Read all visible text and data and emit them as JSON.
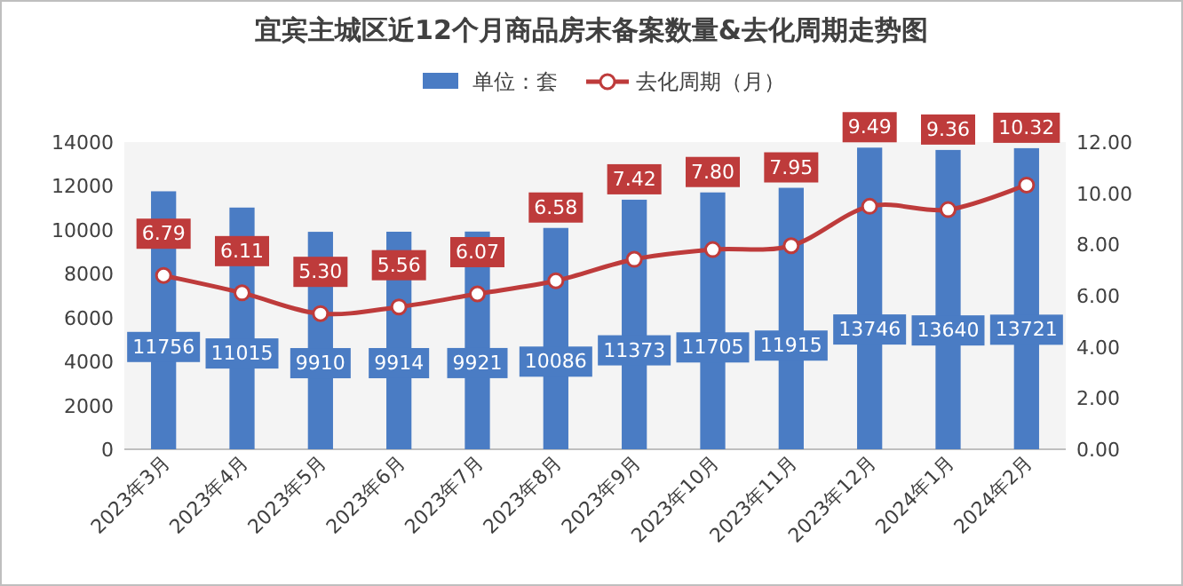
{
  "chart_data": {
    "type": "bar",
    "title": "宜宾主城区近12个月商品房末备案数量&去化周期走势图",
    "categories": [
      "2023年3月",
      "2023年4月",
      "2023年5月",
      "2023年6月",
      "2023年7月",
      "2023年8月",
      "2023年9月",
      "2023年10月",
      "2023年11月",
      "2023年12月",
      "2024年1月",
      "2024年2月"
    ],
    "series": [
      {
        "name": "单位：套",
        "color": "#4a7cc4",
        "values": [
          11756,
          11015,
          9910,
          9914,
          9921,
          10086,
          11373,
          11705,
          11915,
          13746,
          13640,
          13721
        ],
        "value_labels": [
          "11756",
          "11015",
          "9910",
          "9914",
          "9921",
          "10086",
          "11373",
          "11705",
          "11915",
          "13746",
          "13640",
          "13721"
        ]
      },
      {
        "name": "去化周期（月）",
        "type": "line",
        "axis": "y2",
        "color": "#be3b3b",
        "marker": "circle",
        "values": [
          6.79,
          6.11,
          5.3,
          5.56,
          6.07,
          6.58,
          7.42,
          7.8,
          7.95,
          9.49,
          9.36,
          10.32
        ],
        "value_labels": [
          "6.79",
          "6.11",
          "5.30",
          "5.56",
          "6.07",
          "6.58",
          "7.42",
          "7.80",
          "7.95",
          "9.49",
          "9.36",
          "10.32"
        ]
      }
    ],
    "ylim": [
      0,
      14000
    ],
    "yticks": [
      0,
      2000,
      4000,
      6000,
      8000,
      10000,
      12000,
      14000
    ],
    "y2lim": [
      0,
      12
    ],
    "y2ticks": [
      {
        "value": 0,
        "label": "0.00"
      },
      {
        "value": 2,
        "label": "2.00"
      },
      {
        "value": 4,
        "label": "4.00"
      },
      {
        "value": 6,
        "label": "6.00"
      },
      {
        "value": 8,
        "label": "8.00"
      },
      {
        "value": 10,
        "label": "10.00"
      },
      {
        "value": 12,
        "label": "12.00"
      }
    ],
    "legend": "top",
    "grid": false
  }
}
